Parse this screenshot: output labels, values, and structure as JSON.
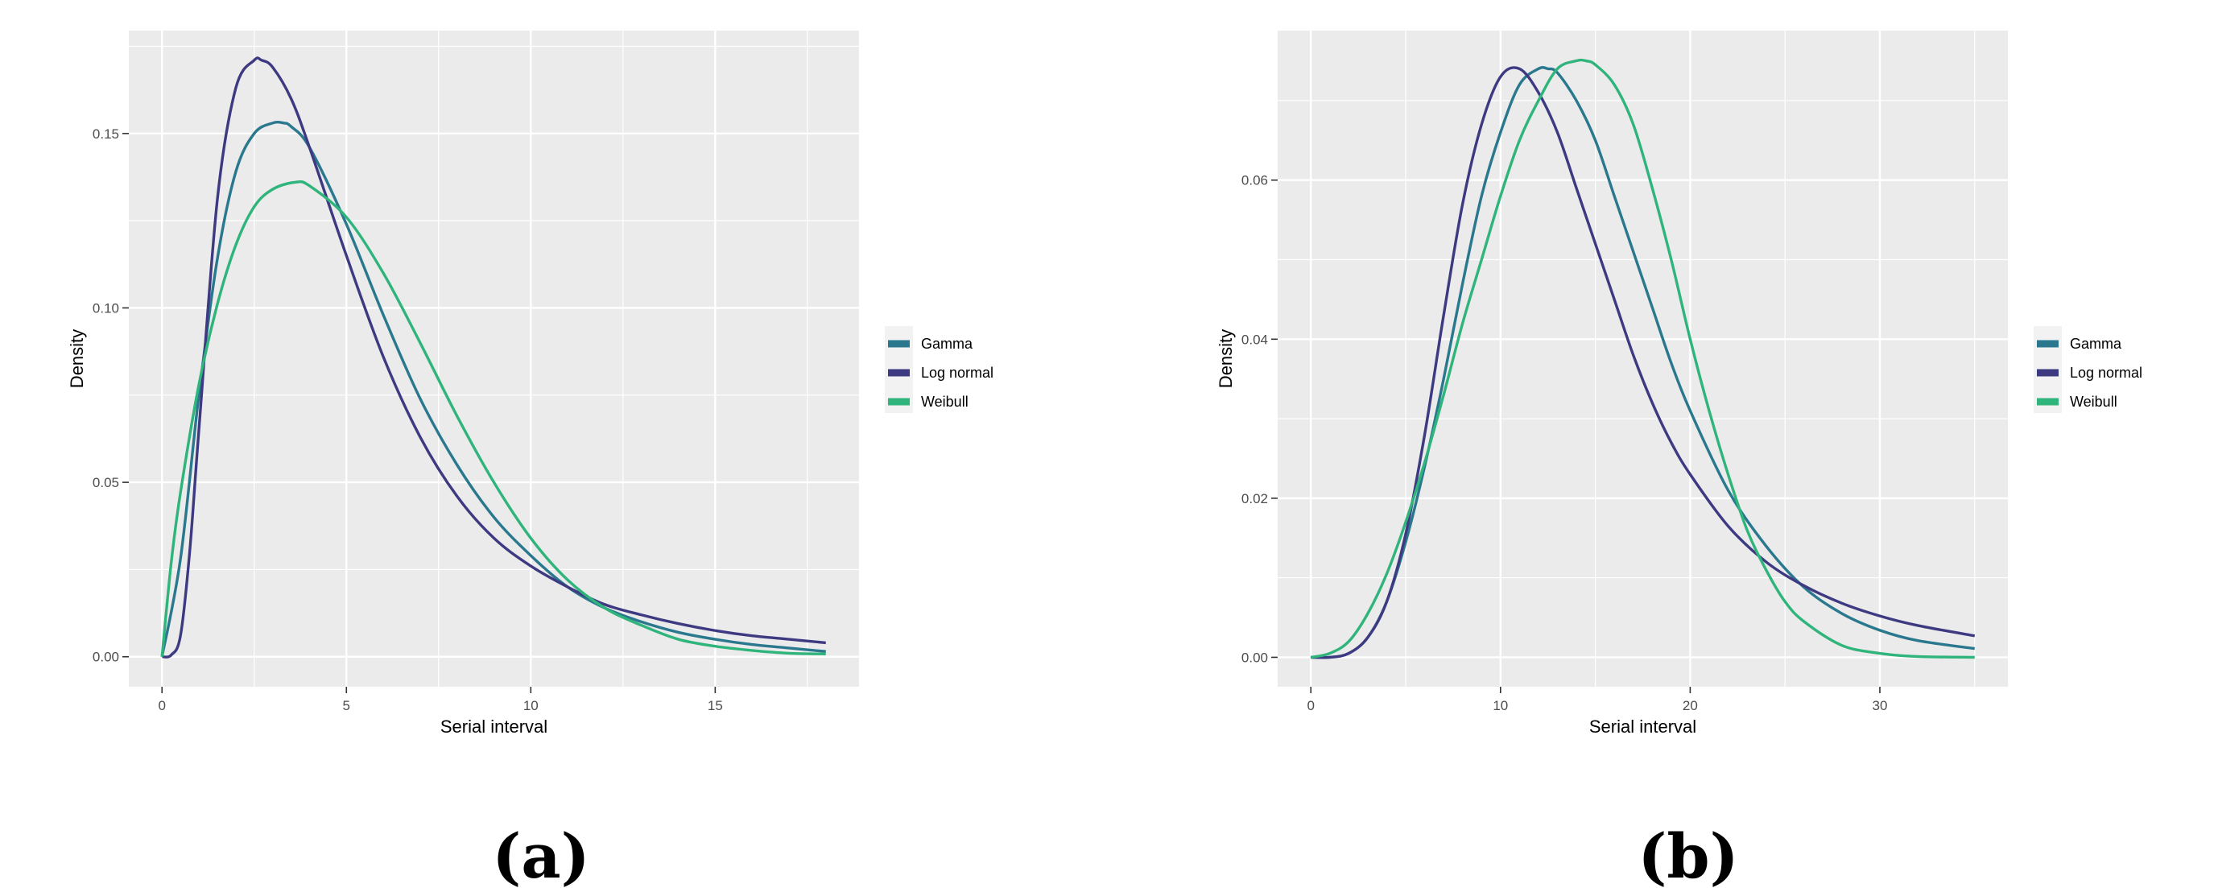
{
  "colors": {
    "Gamma": "#2a788e",
    "Log normal": "#3e3a82",
    "Weibull": "#2fb47c",
    "panel": "#ebebeb",
    "grid": "#ffffff"
  },
  "chart_data": [
    {
      "type": "line",
      "caption": "(a)",
      "xlabel": "Serial interval",
      "ylabel": "Density",
      "xlim": [
        -0.9,
        18.9
      ],
      "ylim": [
        -0.0086,
        0.1795
      ],
      "x_ticks": [
        0,
        5,
        10,
        15
      ],
      "x_tick_labels": [
        "0",
        "5",
        "10",
        "15"
      ],
      "y_ticks": [
        0.0,
        0.05,
        0.1,
        0.15
      ],
      "y_tick_labels": [
        "0.00",
        "0.05",
        "0.10",
        "0.15"
      ],
      "grid": true,
      "legend_position": "right",
      "legend": [
        "Gamma",
        "Log normal",
        "Weibull"
      ],
      "series": [
        {
          "name": "Gamma",
          "x": [
            0,
            0.5,
            1,
            1.5,
            2,
            2.5,
            3,
            3.3,
            3.5,
            4,
            5,
            6,
            7,
            8,
            9,
            10,
            11,
            12,
            13,
            14,
            15,
            16,
            17,
            18
          ],
          "values": [
            0.0,
            0.028,
            0.075,
            0.114,
            0.139,
            0.15,
            0.153,
            0.153,
            0.152,
            0.146,
            0.124,
            0.098,
            0.074,
            0.055,
            0.04,
            0.029,
            0.02,
            0.014,
            0.01,
            0.007,
            0.005,
            0.0035,
            0.0025,
            0.0015
          ]
        },
        {
          "name": "Log normal",
          "x": [
            0,
            0.25,
            0.5,
            0.75,
            1,
            1.5,
            2,
            2.5,
            2.7,
            3,
            3.5,
            4,
            5,
            6,
            7,
            8,
            9,
            10,
            11,
            12,
            13,
            14,
            15,
            16,
            17,
            18
          ],
          "values": [
            0.0,
            0.0005,
            0.006,
            0.03,
            0.065,
            0.131,
            0.163,
            0.171,
            0.171,
            0.169,
            0.16,
            0.146,
            0.115,
            0.086,
            0.063,
            0.046,
            0.034,
            0.026,
            0.02,
            0.015,
            0.012,
            0.0095,
            0.0075,
            0.006,
            0.005,
            0.004
          ]
        },
        {
          "name": "Weibull",
          "x": [
            0,
            0.25,
            0.5,
            1,
            1.5,
            2,
            2.5,
            3,
            3.6,
            4,
            5,
            6,
            7,
            8,
            9,
            10,
            11,
            12,
            13,
            14,
            15,
            16,
            17,
            18
          ],
          "values": [
            0.0,
            0.027,
            0.047,
            0.078,
            0.101,
            0.118,
            0.129,
            0.134,
            0.136,
            0.135,
            0.126,
            0.11,
            0.09,
            0.069,
            0.05,
            0.034,
            0.022,
            0.014,
            0.009,
            0.005,
            0.003,
            0.0018,
            0.001,
            0.0008
          ]
        }
      ]
    },
    {
      "type": "line",
      "caption": "(b)",
      "xlabel": "Serial interval",
      "ylabel": "Density",
      "xlim": [
        -1.75,
        36.75
      ],
      "ylim": [
        -0.0037,
        0.0788
      ],
      "x_ticks": [
        0,
        10,
        20,
        30
      ],
      "x_tick_labels": [
        "0",
        "10",
        "20",
        "30"
      ],
      "y_ticks": [
        0.0,
        0.02,
        0.04,
        0.06
      ],
      "y_tick_labels": [
        "0.00",
        "0.02",
        "0.04",
        "0.06"
      ],
      "grid": true,
      "legend_position": "right",
      "legend": [
        "Gamma",
        "Log normal",
        "Weibull"
      ],
      "series": [
        {
          "name": "Gamma",
          "x": [
            0,
            1,
            2,
            3,
            4,
            5,
            6,
            7,
            8,
            9,
            10,
            11,
            12,
            12.5,
            13,
            14,
            15,
            16,
            17,
            18,
            19,
            20,
            22,
            24,
            26,
            28,
            30,
            32,
            35
          ],
          "values": [
            0.0,
            0.0,
            0.0005,
            0.0025,
            0.007,
            0.0145,
            0.024,
            0.035,
            0.047,
            0.058,
            0.066,
            0.072,
            0.074,
            0.074,
            0.0735,
            0.07,
            0.065,
            0.058,
            0.051,
            0.044,
            0.037,
            0.031,
            0.021,
            0.014,
            0.0088,
            0.0055,
            0.0034,
            0.0021,
            0.0011
          ]
        },
        {
          "name": "Log normal",
          "x": [
            0,
            1,
            2,
            3,
            4,
            5,
            6,
            7,
            8,
            9,
            10,
            11,
            12,
            13,
            14,
            15,
            16,
            17,
            18,
            19,
            20,
            22,
            24,
            26,
            28,
            30,
            32,
            35
          ],
          "values": [
            0.0,
            0.0,
            0.0005,
            0.0025,
            0.007,
            0.0155,
            0.028,
            0.043,
            0.057,
            0.067,
            0.073,
            0.074,
            0.071,
            0.066,
            0.059,
            0.052,
            0.045,
            0.038,
            0.032,
            0.027,
            0.023,
            0.0165,
            0.012,
            0.009,
            0.0068,
            0.0052,
            0.004,
            0.0027
          ]
        },
        {
          "name": "Weibull",
          "x": [
            0,
            1,
            2,
            3,
            4,
            5,
            6,
            7,
            8,
            9,
            10,
            11,
            12,
            13,
            14,
            14.5,
            15,
            16,
            17,
            18,
            19,
            20,
            21,
            22,
            23,
            24,
            25,
            26,
            28,
            30,
            32,
            35
          ],
          "values": [
            0.0,
            0.0005,
            0.002,
            0.0055,
            0.0105,
            0.017,
            0.0245,
            0.033,
            0.042,
            0.05,
            0.058,
            0.065,
            0.07,
            0.074,
            0.075,
            0.075,
            0.0745,
            0.072,
            0.067,
            0.059,
            0.05,
            0.04,
            0.031,
            0.023,
            0.016,
            0.011,
            0.007,
            0.0045,
            0.0015,
            0.0005,
            0.0001,
            0.0
          ]
        }
      ]
    }
  ]
}
